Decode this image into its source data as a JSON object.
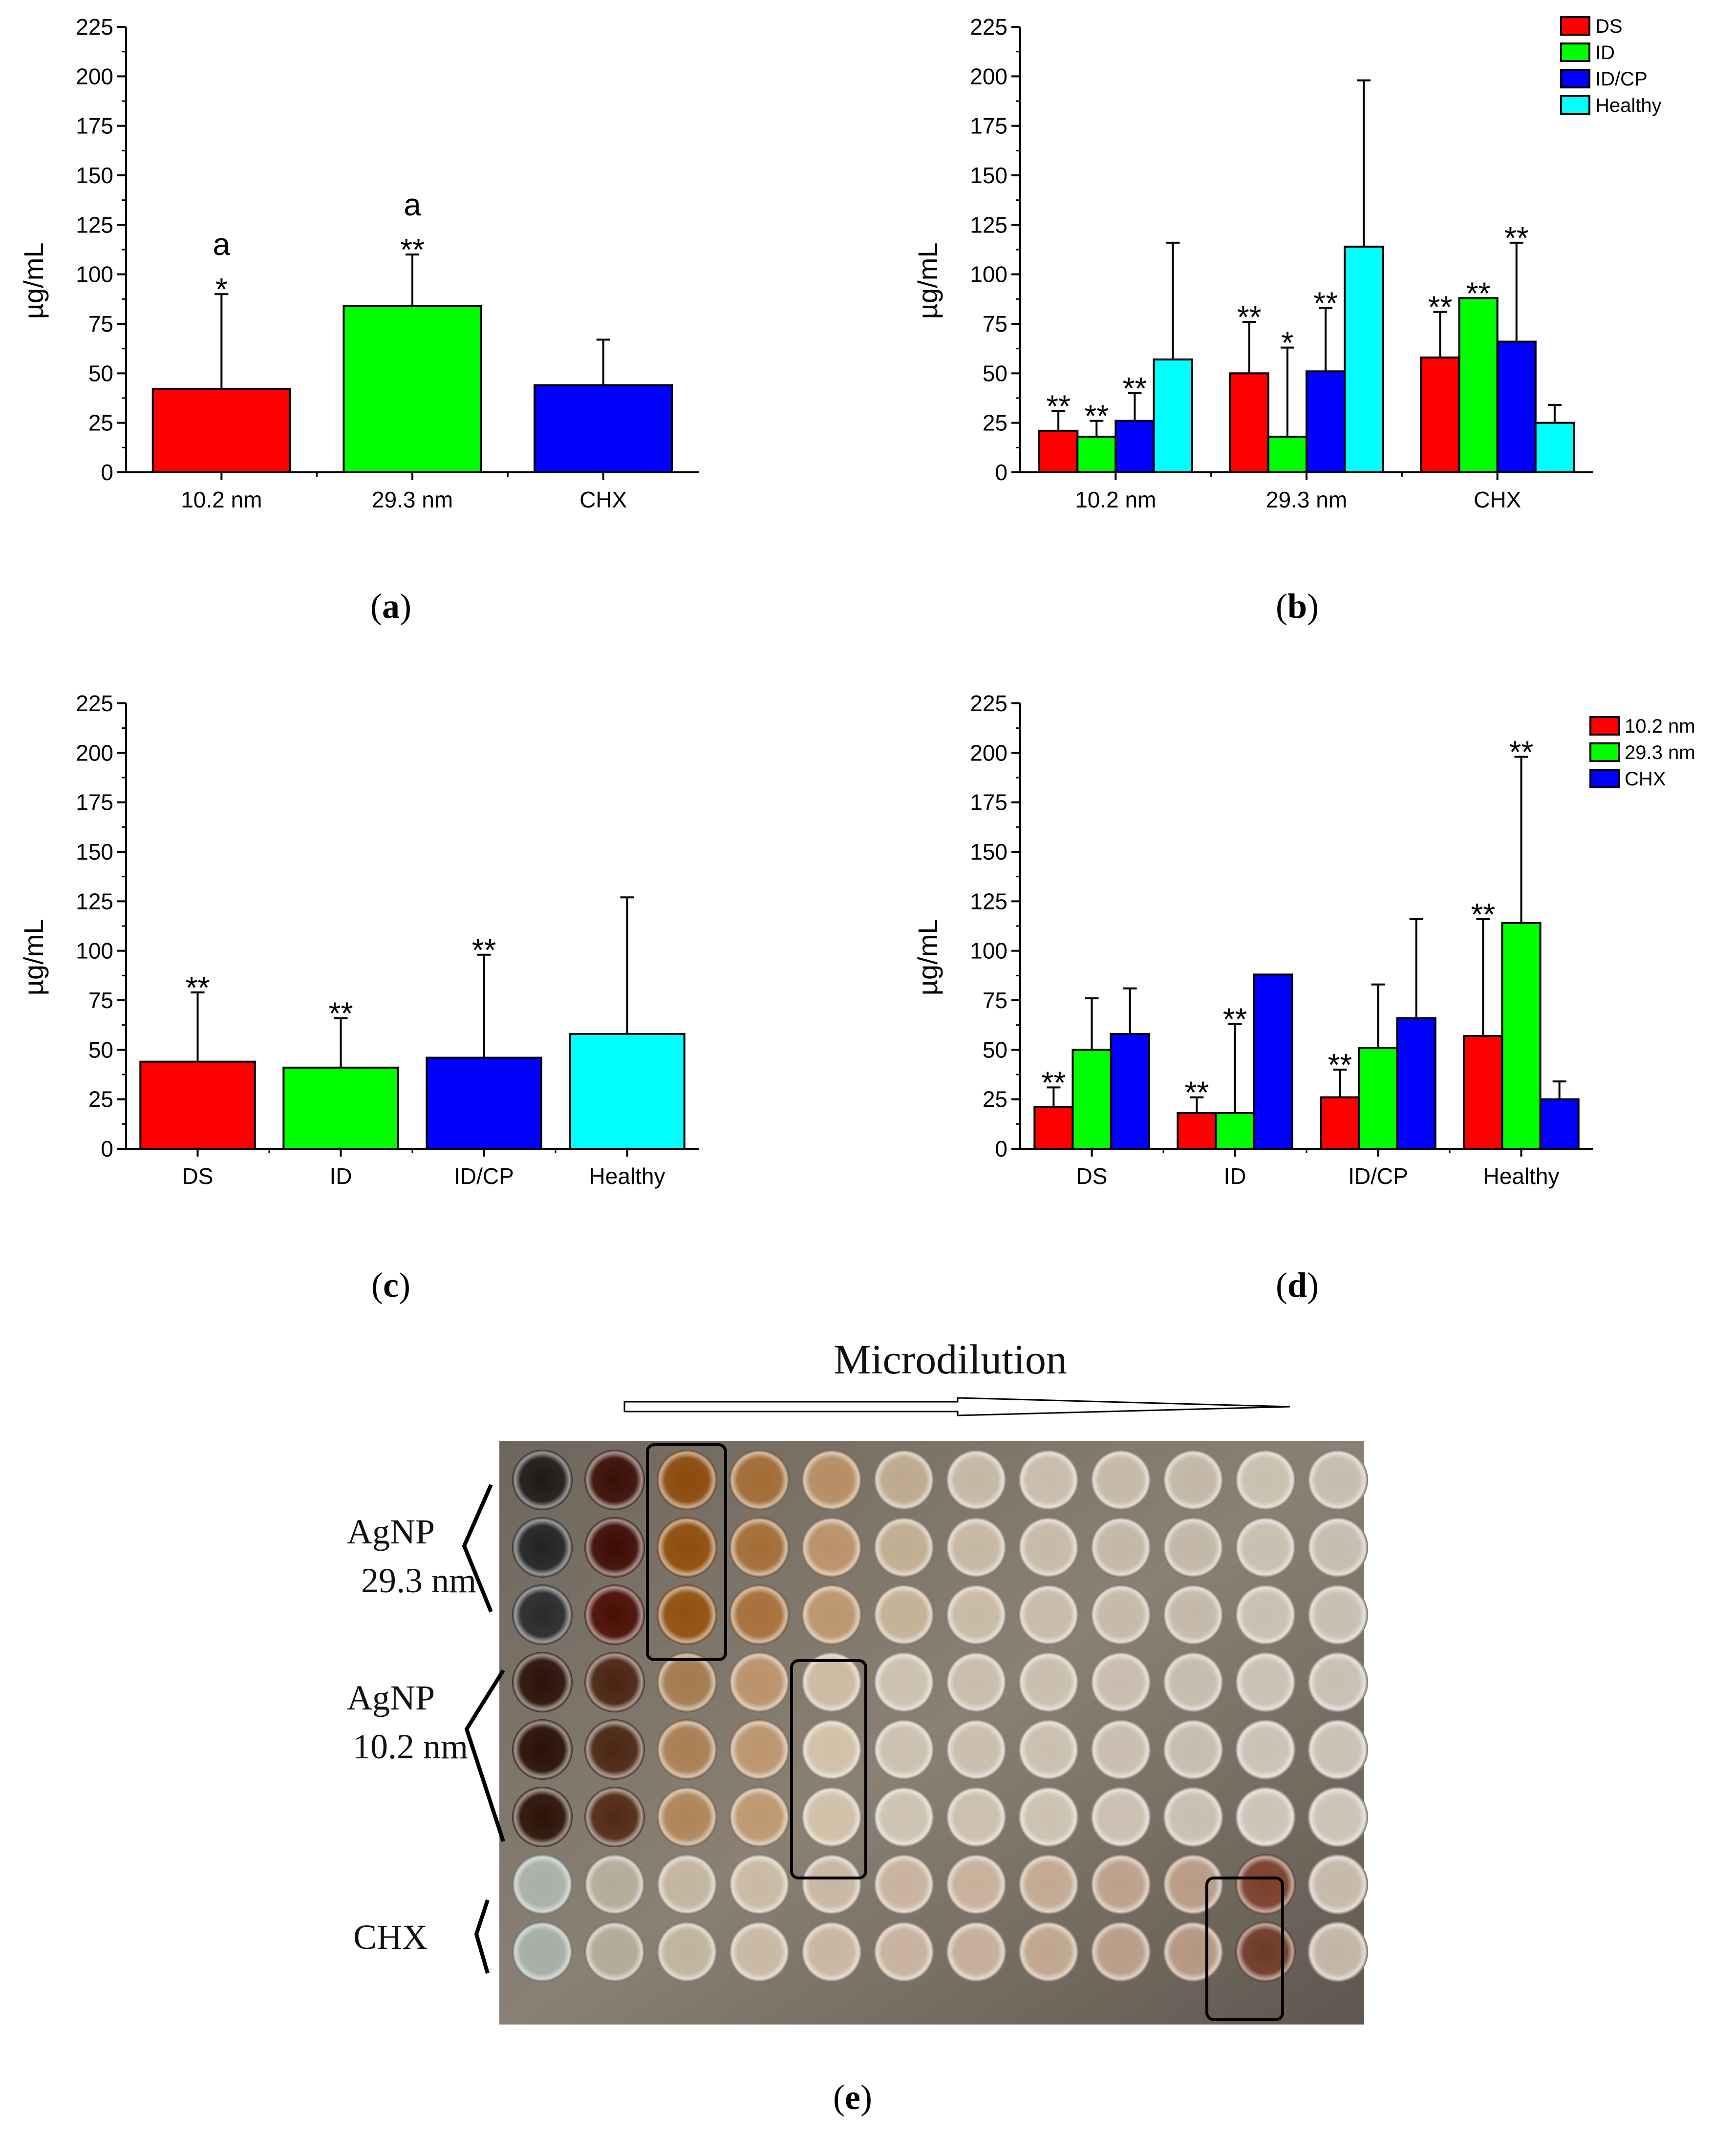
{
  "colors": {
    "red": "#ff0000",
    "green": "#00ff00",
    "blue": "#0000ff",
    "cyan": "#00ffff"
  },
  "chart_data": [
    {
      "type": "bar",
      "panel": "a",
      "panel_label": "a",
      "ylabel": "µg/mL",
      "ylim": [
        0,
        225
      ],
      "yticks": [
        0,
        25,
        50,
        75,
        100,
        125,
        150,
        175,
        200,
        225
      ],
      "categories": [
        "10.2 nm",
        "29.3 nm",
        "CHX"
      ],
      "series": [
        {
          "name": "",
          "colors": [
            "#ff0000",
            "#00ff00",
            "#0000ff"
          ],
          "values": [
            42,
            84,
            44
          ],
          "errors": [
            48,
            26,
            23
          ],
          "annotations": [
            [
              "a",
              "*"
            ],
            [
              "a",
              "**"
            ],
            []
          ]
        }
      ],
      "legend": []
    },
    {
      "type": "bar",
      "panel": "b",
      "panel_label": "b",
      "ylabel": "µg/mL",
      "ylim": [
        0,
        225
      ],
      "yticks": [
        0,
        25,
        50,
        75,
        100,
        125,
        150,
        175,
        200,
        225
      ],
      "categories": [
        "10.2 nm",
        "29.3 nm",
        "CHX"
      ],
      "series": [
        {
          "name": "DS",
          "color": "#ff0000",
          "values": [
            21,
            50,
            58
          ],
          "errors": [
            10,
            26,
            23
          ],
          "annotations": [
            [
              "**"
            ],
            [
              "**"
            ],
            [
              "**"
            ]
          ]
        },
        {
          "name": "ID",
          "color": "#00ff00",
          "values": [
            18,
            18,
            88
          ],
          "errors": [
            8,
            45,
            0
          ],
          "annotations": [
            [
              "**"
            ],
            [
              "*"
            ],
            [
              "**"
            ]
          ]
        },
        {
          "name": "ID/CP",
          "color": "#0000ff",
          "values": [
            26,
            51,
            66
          ],
          "errors": [
            14,
            32,
            50
          ],
          "annotations": [
            [
              "**"
            ],
            [
              "**"
            ],
            [
              "**"
            ]
          ]
        },
        {
          "name": "Healthy",
          "color": "#00ffff",
          "values": [
            57,
            114,
            25
          ],
          "errors": [
            59,
            84,
            9
          ],
          "annotations": [
            [],
            [],
            []
          ]
        }
      ],
      "legend": [
        "DS",
        "ID",
        "ID/CP",
        "Healthy"
      ]
    },
    {
      "type": "bar",
      "panel": "c",
      "panel_label": "c",
      "ylabel": "µg/mL",
      "ylim": [
        0,
        225
      ],
      "yticks": [
        0,
        25,
        50,
        75,
        100,
        125,
        150,
        175,
        200,
        225
      ],
      "categories": [
        "DS",
        "ID",
        "ID/CP",
        "Healthy"
      ],
      "series": [
        {
          "name": "",
          "colors": [
            "#ff0000",
            "#00ff00",
            "#0000ff",
            "#00ffff"
          ],
          "values": [
            44,
            41,
            46,
            58
          ],
          "errors": [
            35,
            25,
            52,
            69
          ],
          "annotations": [
            [
              "**"
            ],
            [
              "**"
            ],
            [
              "**"
            ],
            []
          ]
        }
      ],
      "legend": []
    },
    {
      "type": "bar",
      "panel": "d",
      "panel_label": "d",
      "ylabel": "µg/mL",
      "ylim": [
        0,
        225
      ],
      "yticks": [
        0,
        25,
        50,
        75,
        100,
        125,
        150,
        175,
        200,
        225
      ],
      "categories": [
        "DS",
        "ID",
        "ID/CP",
        "Healthy"
      ],
      "series": [
        {
          "name": "10.2 nm",
          "color": "#ff0000",
          "values": [
            21,
            18,
            26,
            57
          ],
          "errors": [
            10,
            8,
            14,
            59
          ],
          "annotations": [
            [
              "**"
            ],
            [
              "**"
            ],
            [
              "**"
            ],
            [
              "**"
            ]
          ]
        },
        {
          "name": "29.3 nm",
          "color": "#00ff00",
          "values": [
            50,
            18,
            51,
            114
          ],
          "errors": [
            26,
            45,
            32,
            84
          ],
          "annotations": [
            [],
            [
              "**"
            ],
            [],
            [
              "**"
            ]
          ]
        },
        {
          "name": "CHX",
          "color": "#0000ff",
          "values": [
            58,
            88,
            66,
            25
          ],
          "errors": [
            23,
            0,
            50,
            9
          ],
          "annotations": [
            [],
            [],
            [],
            []
          ]
        }
      ],
      "legend": [
        "10.2 nm",
        "29.3 nm",
        "CHX"
      ]
    }
  ],
  "photo": {
    "panel_label": "e",
    "title": "Microdilution",
    "row_labels": [
      {
        "line1": "AgNP",
        "line2": "29.3 nm"
      },
      {
        "line1": "AgNP",
        "line2": "10.2 nm"
      },
      {
        "line1": "CHX",
        "line2": ""
      }
    ]
  }
}
